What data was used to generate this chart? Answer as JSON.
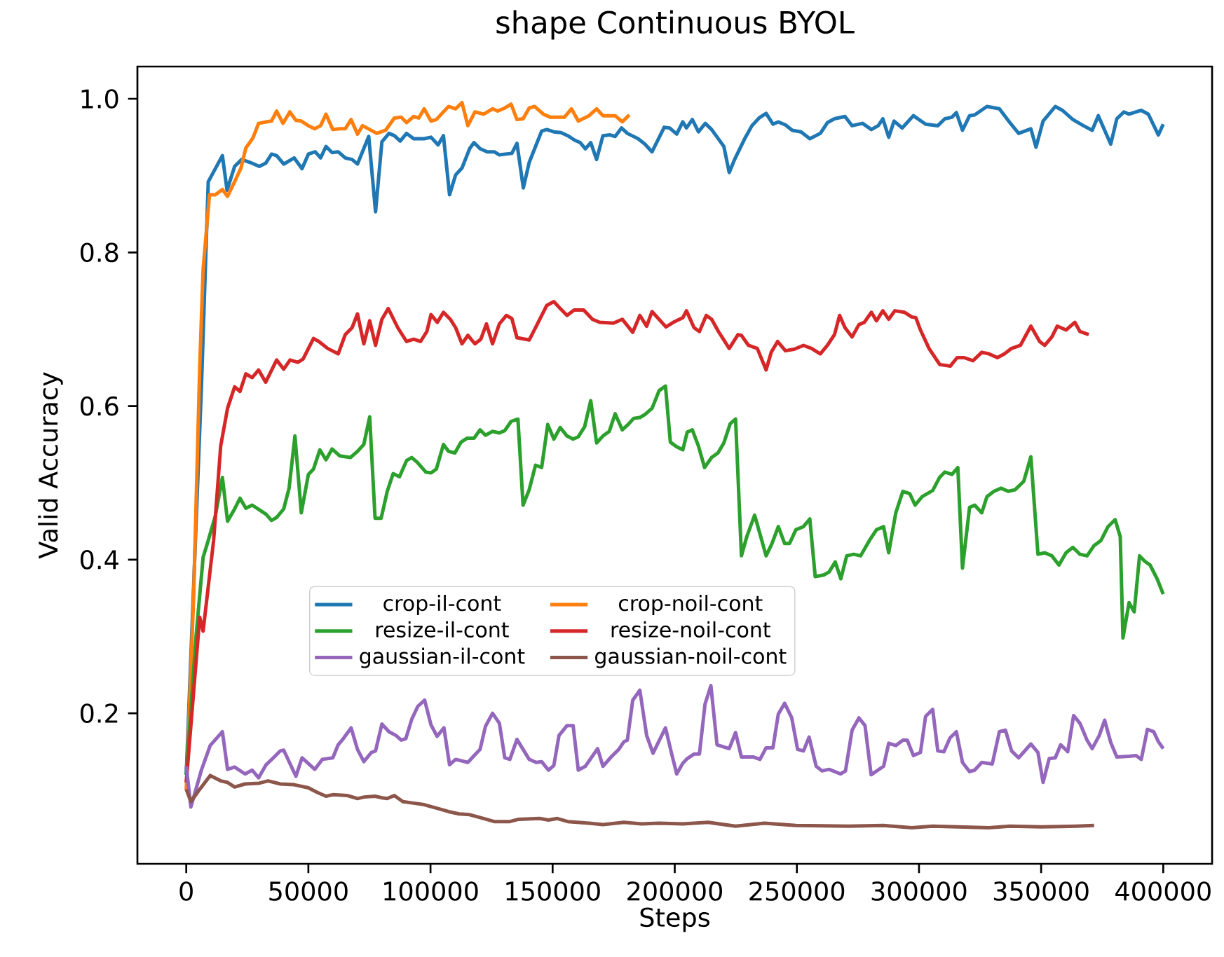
{
  "chart_data": {
    "type": "line",
    "title": "shape Continuous BYOL",
    "xlabel": "Steps",
    "ylabel": "Valid Accuracy",
    "xlim": [
      -20000,
      420000
    ],
    "ylim": [
      0.004,
      1.042
    ],
    "xticks": [
      0,
      50000,
      100000,
      150000,
      200000,
      250000,
      300000,
      350000,
      400000
    ],
    "yticks": [
      0.2,
      0.4,
      0.6,
      0.8,
      {
        "value": 1,
        "label": "1.0"
      }
    ],
    "legend": "center",
    "grid": false,
    "line_style": "solid",
    "series": [
      {
        "name": "crop-il-cont",
        "color": "#1f77b4",
        "x": [
          0,
          6200,
          9000,
          14800,
          16700,
          19800,
          22700,
          26300,
          29900,
          32500,
          34900,
          37000,
          39900,
          44200,
          47400,
          50000,
          52800,
          55000,
          57200,
          59700,
          62200,
          65100,
          67900,
          70100,
          74700,
          77500,
          80100,
          83000,
          85200,
          87600,
          90200,
          93100,
          97400,
          100200,
          103100,
          105300,
          107800,
          110300,
          112900,
          116000,
          117800,
          120300,
          123200,
          126100,
          128200,
          133300,
          135400,
          138000,
          140400,
          145500,
          147600,
          150500,
          153400,
          156200,
          159100,
          161300,
          163400,
          165600,
          168000,
          170600,
          173500,
          175600,
          178200,
          180600,
          185000,
          187800,
          190700,
          195700,
          197900,
          200800,
          203300,
          204800,
          207200,
          209700,
          212500,
          215100,
          220100,
          222300,
          224500,
          228800,
          231600,
          234500,
          237400,
          240200,
          242400,
          245300,
          248100,
          251700,
          255300,
          259600,
          262500,
          265400,
          269700,
          272600,
          276900,
          280500,
          283300,
          285200,
          287600,
          289800,
          293100,
          297700,
          302700,
          307700,
          310600,
          313500,
          315300,
          317800,
          320700,
          322800,
          327800,
          332900,
          337200,
          340800,
          345800,
          347900,
          350800,
          355800,
          358700,
          363000,
          367300,
          370900,
          373400,
          378500,
          381000,
          383900,
          386000,
          391000,
          393900,
          398000,
          400000
        ],
        "values": [
          0.12,
          0.624,
          0.892,
          0.926,
          0.881,
          0.912,
          0.921,
          0.917,
          0.912,
          0.916,
          0.928,
          0.926,
          0.915,
          0.923,
          0.909,
          0.928,
          0.931,
          0.923,
          0.938,
          0.93,
          0.931,
          0.923,
          0.921,
          0.915,
          0.951,
          0.853,
          0.944,
          0.955,
          0.952,
          0.945,
          0.955,
          0.948,
          0.948,
          0.95,
          0.94,
          0.952,
          0.875,
          0.901,
          0.91,
          0.935,
          0.943,
          0.935,
          0.931,
          0.931,
          0.927,
          0.929,
          0.942,
          0.884,
          0.917,
          0.958,
          0.96,
          0.957,
          0.956,
          0.952,
          0.946,
          0.943,
          0.935,
          0.943,
          0.921,
          0.952,
          0.953,
          0.951,
          0.962,
          0.955,
          0.948,
          0.941,
          0.931,
          0.963,
          0.962,
          0.954,
          0.97,
          0.962,
          0.973,
          0.957,
          0.968,
          0.96,
          0.938,
          0.904,
          0.921,
          0.949,
          0.965,
          0.975,
          0.981,
          0.967,
          0.97,
          0.966,
          0.959,
          0.957,
          0.948,
          0.955,
          0.969,
          0.974,
          0.977,
          0.965,
          0.968,
          0.96,
          0.965,
          0.974,
          0.95,
          0.971,
          0.962,
          0.978,
          0.967,
          0.965,
          0.974,
          0.976,
          0.982,
          0.959,
          0.978,
          0.979,
          0.99,
          0.987,
          0.969,
          0.955,
          0.961,
          0.937,
          0.971,
          0.99,
          0.985,
          0.973,
          0.965,
          0.959,
          0.978,
          0.941,
          0.974,
          0.983,
          0.98,
          0.985,
          0.98,
          0.953,
          0.967
        ]
      },
      {
        "name": "crop-noil-cont",
        "color": "#ff7f0e",
        "x": [
          0,
          3000,
          5500,
          6900,
          9500,
          11900,
          14800,
          16900,
          19800,
          22400,
          24400,
          27300,
          29600,
          32700,
          34900,
          37000,
          39600,
          42400,
          44900,
          47100,
          50000,
          52600,
          55000,
          57200,
          60000,
          62900,
          65100,
          67500,
          70100,
          72200,
          75100,
          78000,
          81600,
          85200,
          88000,
          90200,
          93100,
          95200,
          97400,
          100200,
          102400,
          105300,
          107400,
          110300,
          112900,
          115300,
          118200,
          121800,
          125400,
          127500,
          130400,
          133000,
          135400,
          137900,
          140400,
          142600,
          146200,
          149100,
          154800,
          157700,
          160500,
          164900,
          168000,
          170600,
          175600,
          178500,
          181400
        ],
        "values": [
          0.1,
          0.35,
          0.65,
          0.778,
          0.875,
          0.875,
          0.882,
          0.873,
          0.892,
          0.91,
          0.936,
          0.949,
          0.968,
          0.97,
          0.971,
          0.984,
          0.968,
          0.983,
          0.972,
          0.971,
          0.965,
          0.961,
          0.965,
          0.98,
          0.96,
          0.961,
          0.961,
          0.973,
          0.954,
          0.965,
          0.96,
          0.955,
          0.959,
          0.975,
          0.976,
          0.969,
          0.977,
          0.975,
          0.987,
          0.971,
          0.973,
          0.983,
          0.99,
          0.987,
          0.995,
          0.965,
          0.983,
          0.98,
          0.987,
          0.984,
          0.988,
          0.993,
          0.973,
          0.974,
          0.988,
          0.99,
          0.98,
          0.976,
          0.976,
          0.987,
          0.971,
          0.978,
          0.987,
          0.978,
          0.978,
          0.97,
          0.979
        ]
      },
      {
        "name": "resize-il-cont",
        "color": "#2ca02c",
        "x": [
          0,
          4000,
          6900,
          9000,
          11900,
          14800,
          16900,
          19800,
          22000,
          24400,
          27000,
          29900,
          32700,
          34900,
          37000,
          39900,
          42100,
          44500,
          47100,
          50000,
          52100,
          54700,
          57200,
          59700,
          62900,
          67200,
          70100,
          72700,
          75100,
          77300,
          79800,
          82300,
          84700,
          87300,
          90200,
          92300,
          94500,
          98100,
          100200,
          102400,
          105300,
          107400,
          110000,
          112500,
          114900,
          117800,
          120300,
          122500,
          125400,
          128200,
          130400,
          133000,
          135800,
          137900,
          140400,
          143000,
          145500,
          148000,
          150500,
          153100,
          155900,
          158400,
          160500,
          163100,
          165600,
          168000,
          170600,
          173200,
          175600,
          178500,
          180600,
          183200,
          185700,
          187800,
          190700,
          193600,
          196200,
          198200,
          200800,
          203300,
          205100,
          207200,
          209700,
          212200,
          215100,
          217700,
          220100,
          222700,
          224900,
          227300,
          229500,
          232700,
          235200,
          237400,
          239800,
          242400,
          245000,
          247000,
          249600,
          252700,
          255300,
          257500,
          261000,
          263200,
          265700,
          268000,
          270400,
          273300,
          276100,
          279700,
          282600,
          285500,
          287600,
          290500,
          293400,
          296200,
          298400,
          301300,
          305600,
          308400,
          310600,
          313500,
          315900,
          317800,
          320700,
          322800,
          325700,
          327800,
          330700,
          333600,
          336500,
          339300,
          342900,
          345800,
          348700,
          351500,
          354400,
          357300,
          360200,
          363000,
          365900,
          368800,
          371600,
          374500,
          377400,
          380300,
          382400,
          383500,
          386000,
          388100,
          390300,
          392400,
          394600,
          397500,
          400000
        ],
        "values": [
          0.12,
          0.3,
          0.403,
          0.425,
          0.457,
          0.507,
          0.45,
          0.466,
          0.48,
          0.467,
          0.471,
          0.465,
          0.459,
          0.451,
          0.455,
          0.466,
          0.493,
          0.561,
          0.461,
          0.511,
          0.518,
          0.543,
          0.53,
          0.544,
          0.535,
          0.533,
          0.541,
          0.55,
          0.586,
          0.454,
          0.454,
          0.489,
          0.512,
          0.508,
          0.529,
          0.533,
          0.527,
          0.514,
          0.513,
          0.518,
          0.55,
          0.541,
          0.539,
          0.553,
          0.558,
          0.558,
          0.569,
          0.562,
          0.567,
          0.565,
          0.568,
          0.58,
          0.583,
          0.471,
          0.491,
          0.523,
          0.52,
          0.576,
          0.557,
          0.572,
          0.561,
          0.557,
          0.56,
          0.573,
          0.607,
          0.552,
          0.561,
          0.567,
          0.59,
          0.569,
          0.575,
          0.584,
          0.585,
          0.589,
          0.597,
          0.62,
          0.626,
          0.553,
          0.547,
          0.543,
          0.566,
          0.569,
          0.548,
          0.52,
          0.533,
          0.539,
          0.552,
          0.577,
          0.583,
          0.405,
          0.43,
          0.458,
          0.43,
          0.405,
          0.421,
          0.443,
          0.421,
          0.421,
          0.439,
          0.443,
          0.453,
          0.378,
          0.38,
          0.384,
          0.397,
          0.375,
          0.405,
          0.407,
          0.405,
          0.425,
          0.439,
          0.443,
          0.409,
          0.461,
          0.489,
          0.486,
          0.471,
          0.482,
          0.49,
          0.507,
          0.514,
          0.511,
          0.52,
          0.389,
          0.468,
          0.471,
          0.461,
          0.482,
          0.489,
          0.493,
          0.489,
          0.491,
          0.502,
          0.534,
          0.407,
          0.409,
          0.405,
          0.393,
          0.409,
          0.416,
          0.407,
          0.405,
          0.418,
          0.425,
          0.443,
          0.452,
          0.43,
          0.298,
          0.344,
          0.332,
          0.405,
          0.398,
          0.393,
          0.375,
          0.355
        ]
      },
      {
        "name": "resize-noil-cont",
        "color": "#d62728",
        "x": [
          0,
          5500,
          6900,
          11200,
          14100,
          16900,
          19800,
          22000,
          24400,
          27000,
          29600,
          32500,
          37000,
          39900,
          42500,
          45700,
          47800,
          52100,
          54300,
          57900,
          62200,
          65100,
          67900,
          70100,
          72700,
          75100,
          77500,
          80100,
          82700,
          86600,
          90200,
          93100,
          95900,
          98500,
          100200,
          102800,
          105300,
          108100,
          110300,
          112900,
          115300,
          118200,
          120600,
          122900,
          125400,
          128200,
          131100,
          133300,
          135400,
          140400,
          143300,
          147600,
          150500,
          153100,
          155900,
          158800,
          162700,
          166300,
          169200,
          174900,
          178500,
          182800,
          185700,
          188500,
          190700,
          196400,
          200000,
          203300,
          204800,
          207900,
          210100,
          212900,
          215100,
          217900,
          222300,
          225900,
          227300,
          230200,
          233800,
          237400,
          239500,
          242100,
          245300,
          248900,
          252700,
          256000,
          259600,
          262500,
          265400,
          267500,
          269700,
          272600,
          275400,
          277600,
          280500,
          282600,
          285200,
          287600,
          290100,
          294100,
          297000,
          298700,
          300600,
          304100,
          308500,
          312800,
          315600,
          318500,
          322100,
          325700,
          328600,
          332100,
          335000,
          337900,
          341500,
          345800,
          349400,
          351500,
          354400,
          356600,
          360200,
          363800,
          365900,
          369500
        ],
        "values": [
          0.11,
          0.325,
          0.307,
          0.425,
          0.548,
          0.597,
          0.625,
          0.619,
          0.642,
          0.637,
          0.647,
          0.631,
          0.66,
          0.648,
          0.66,
          0.657,
          0.661,
          0.688,
          0.684,
          0.675,
          0.668,
          0.693,
          0.702,
          0.72,
          0.681,
          0.711,
          0.679,
          0.713,
          0.727,
          0.702,
          0.684,
          0.687,
          0.684,
          0.697,
          0.719,
          0.709,
          0.722,
          0.713,
          0.702,
          0.681,
          0.692,
          0.681,
          0.687,
          0.707,
          0.681,
          0.707,
          0.718,
          0.714,
          0.689,
          0.686,
          0.704,
          0.731,
          0.736,
          0.727,
          0.718,
          0.725,
          0.725,
          0.713,
          0.709,
          0.708,
          0.713,
          0.696,
          0.718,
          0.704,
          0.723,
          0.703,
          0.71,
          0.715,
          0.724,
          0.702,
          0.697,
          0.718,
          0.713,
          0.697,
          0.675,
          0.693,
          0.692,
          0.679,
          0.675,
          0.647,
          0.67,
          0.684,
          0.672,
          0.674,
          0.679,
          0.675,
          0.668,
          0.679,
          0.693,
          0.718,
          0.702,
          0.69,
          0.706,
          0.709,
          0.722,
          0.711,
          0.724,
          0.713,
          0.724,
          0.722,
          0.716,
          0.715,
          0.699,
          0.675,
          0.654,
          0.652,
          0.663,
          0.663,
          0.659,
          0.67,
          0.668,
          0.663,
          0.668,
          0.675,
          0.679,
          0.704,
          0.684,
          0.679,
          0.69,
          0.704,
          0.699,
          0.709,
          0.697,
          0.693
        ]
      },
      {
        "name": "gaussian-il-cont",
        "color": "#9467bd",
        "x": [
          0,
          1900,
          6200,
          9800,
          14800,
          16900,
          19800,
          24100,
          27000,
          29600,
          32700,
          36300,
          38500,
          39900,
          44900,
          47400,
          52600,
          55700,
          60000,
          62200,
          64300,
          67500,
          70100,
          72700,
          75800,
          77500,
          80100,
          83000,
          85900,
          88000,
          89900,
          92300,
          94800,
          97600,
          100200,
          102700,
          105500,
          107800,
          110300,
          115300,
          118200,
          120300,
          122500,
          125400,
          128200,
          130400,
          132500,
          135400,
          140400,
          143300,
          145500,
          148300,
          150500,
          152600,
          155900,
          158400,
          160500,
          163400,
          168400,
          170600,
          174200,
          177100,
          179200,
          180600,
          182800,
          185700,
          188500,
          191100,
          196200,
          198600,
          200800,
          203300,
          205100,
          208000,
          210100,
          212400,
          214800,
          217300,
          222300,
          224900,
          227300,
          232300,
          234900,
          237400,
          240200,
          242400,
          245000,
          247900,
          250300,
          252700,
          255000,
          257900,
          260300,
          263200,
          267900,
          269900,
          272600,
          275400,
          277900,
          280400,
          285500,
          287600,
          290500,
          293400,
          295200,
          297700,
          300600,
          302700,
          305600,
          307700,
          310200,
          312700,
          315300,
          317800,
          320700,
          322800,
          325700,
          330000,
          332900,
          335400,
          337900,
          340800,
          345800,
          348700,
          350800,
          353300,
          355800,
          358000,
          360900,
          363300,
          365900,
          368800,
          370900,
          373800,
          376000,
          378500,
          381000,
          386000,
          388900,
          391000,
          393500,
          396100,
          398000,
          400000
        ],
        "values": [
          0.131,
          0.078,
          0.126,
          0.158,
          0.176,
          0.127,
          0.13,
          0.121,
          0.126,
          0.116,
          0.133,
          0.144,
          0.151,
          0.152,
          0.118,
          0.142,
          0.127,
          0.14,
          0.142,
          0.159,
          0.167,
          0.181,
          0.153,
          0.137,
          0.149,
          0.151,
          0.186,
          0.176,
          0.171,
          0.165,
          0.167,
          0.192,
          0.209,
          0.217,
          0.185,
          0.17,
          0.181,
          0.133,
          0.14,
          0.136,
          0.146,
          0.153,
          0.183,
          0.2,
          0.187,
          0.142,
          0.14,
          0.166,
          0.14,
          0.136,
          0.137,
          0.126,
          0.132,
          0.171,
          0.184,
          0.184,
          0.126,
          0.131,
          0.154,
          0.131,
          0.144,
          0.153,
          0.163,
          0.165,
          0.217,
          0.23,
          0.171,
          0.148,
          0.181,
          0.149,
          0.121,
          0.135,
          0.141,
          0.147,
          0.147,
          0.212,
          0.236,
          0.159,
          0.154,
          0.175,
          0.143,
          0.143,
          0.14,
          0.155,
          0.155,
          0.199,
          0.213,
          0.194,
          0.153,
          0.151,
          0.169,
          0.131,
          0.125,
          0.127,
          0.121,
          0.125,
          0.178,
          0.194,
          0.184,
          0.12,
          0.131,
          0.161,
          0.158,
          0.165,
          0.165,
          0.145,
          0.149,
          0.196,
          0.205,
          0.151,
          0.15,
          0.168,
          0.176,
          0.136,
          0.124,
          0.126,
          0.136,
          0.134,
          0.176,
          0.178,
          0.151,
          0.142,
          0.16,
          0.149,
          0.11,
          0.141,
          0.142,
          0.159,
          0.15,
          0.197,
          0.187,
          0.165,
          0.154,
          0.171,
          0.191,
          0.162,
          0.143,
          0.144,
          0.145,
          0.14,
          0.179,
          0.176,
          0.163,
          0.154
        ]
      },
      {
        "name": "gaussian-noil-cont",
        "color": "#8c564b",
        "x": [
          0,
          1900,
          5500,
          9800,
          14100,
          16900,
          19800,
          24100,
          29900,
          33500,
          38500,
          44200,
          50000,
          53600,
          57200,
          60000,
          65800,
          70100,
          72900,
          77300,
          80100,
          82300,
          85200,
          88700,
          93100,
          97400,
          103100,
          107400,
          111700,
          116000,
          121800,
          126100,
          132500,
          136100,
          144700,
          148300,
          151900,
          156200,
          164900,
          170600,
          179200,
          186400,
          193600,
          203300,
          213700,
          224900,
          236700,
          249600,
          271100,
          285500,
          297000,
          305600,
          328600,
          337200,
          350100,
          364500,
          371700
        ],
        "values": [
          0.101,
          0.085,
          0.101,
          0.119,
          0.112,
          0.11,
          0.104,
          0.108,
          0.109,
          0.112,
          0.108,
          0.107,
          0.103,
          0.097,
          0.092,
          0.094,
          0.093,
          0.089,
          0.091,
          0.092,
          0.09,
          0.089,
          0.093,
          0.085,
          0.083,
          0.081,
          0.076,
          0.072,
          0.069,
          0.068,
          0.063,
          0.059,
          0.059,
          0.062,
          0.063,
          0.061,
          0.063,
          0.059,
          0.057,
          0.055,
          0.058,
          0.056,
          0.057,
          0.056,
          0.058,
          0.053,
          0.057,
          0.054,
          0.053,
          0.054,
          0.051,
          0.053,
          0.051,
          0.053,
          0.052,
          0.053,
          0.054
        ]
      }
    ]
  }
}
